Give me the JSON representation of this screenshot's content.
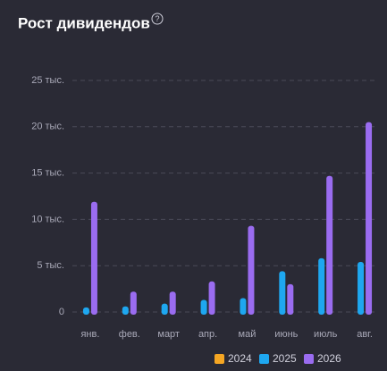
{
  "chart_data": {
    "type": "bar",
    "title": "Рост дивидендов",
    "categories": [
      "янв.",
      "фев.",
      "март",
      "апр.",
      "май",
      "июнь",
      "июль",
      "авг."
    ],
    "series": [
      {
        "name": "2024",
        "color": "#f5a623",
        "values": [
          null,
          null,
          null,
          null,
          null,
          null,
          null,
          null
        ]
      },
      {
        "name": "2025",
        "color": "#1ea7f0",
        "values": [
          500,
          600,
          900,
          1300,
          1500,
          4400,
          5800,
          5400
        ]
      },
      {
        "name": "2026",
        "color": "#9a6cf0",
        "values": [
          11900,
          2200,
          2200,
          3300,
          9300,
          3000,
          14700,
          20500
        ]
      }
    ],
    "ylim": [
      0,
      25000
    ],
    "yticks": [
      0,
      {
        "value": 5000,
        "label": "5 тыс."
      },
      {
        "value": 10000,
        "label": "10 тыс."
      },
      {
        "value": 15000,
        "label": "15 тыс."
      },
      {
        "value": 20000,
        "label": "20 тыс."
      },
      {
        "value": 25000,
        "label": "25 тыс."
      }
    ],
    "grid": true
  }
}
